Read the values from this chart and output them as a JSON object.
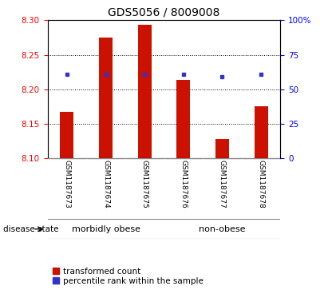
{
  "title": "GDS5056 / 8009008",
  "samples": [
    "GSM1187673",
    "GSM1187674",
    "GSM1187675",
    "GSM1187676",
    "GSM1187677",
    "GSM1187678"
  ],
  "bar_values": [
    8.167,
    8.275,
    8.293,
    8.213,
    8.128,
    8.175
  ],
  "bar_base": 8.1,
  "percentile_values": [
    8.222,
    8.222,
    8.222,
    8.222,
    8.218,
    8.222
  ],
  "ylim_left": [
    8.1,
    8.3
  ],
  "ylim_right": [
    0,
    100
  ],
  "yticks_left": [
    8.1,
    8.15,
    8.2,
    8.25,
    8.3
  ],
  "yticks_right": [
    0,
    25,
    50,
    75,
    100
  ],
  "ytick_labels_right": [
    "0",
    "25",
    "50",
    "75",
    "100%"
  ],
  "bar_color": "#cc1100",
  "dot_color": "#3333cc",
  "group_labels": [
    "morbidly obese",
    "non-obese"
  ],
  "group_color": "#88ee88",
  "label_bar": "transformed count",
  "label_dot": "percentile rank within the sample",
  "disease_state_label": "disease state",
  "bg_color": "#ffffff",
  "tick_area_color": "#cccccc",
  "grid_color": "#000000",
  "title_fontsize": 10,
  "tick_label_fontsize": 7.5,
  "sample_label_fontsize": 6.5,
  "group_label_fontsize": 8,
  "legend_fontsize": 7.5
}
